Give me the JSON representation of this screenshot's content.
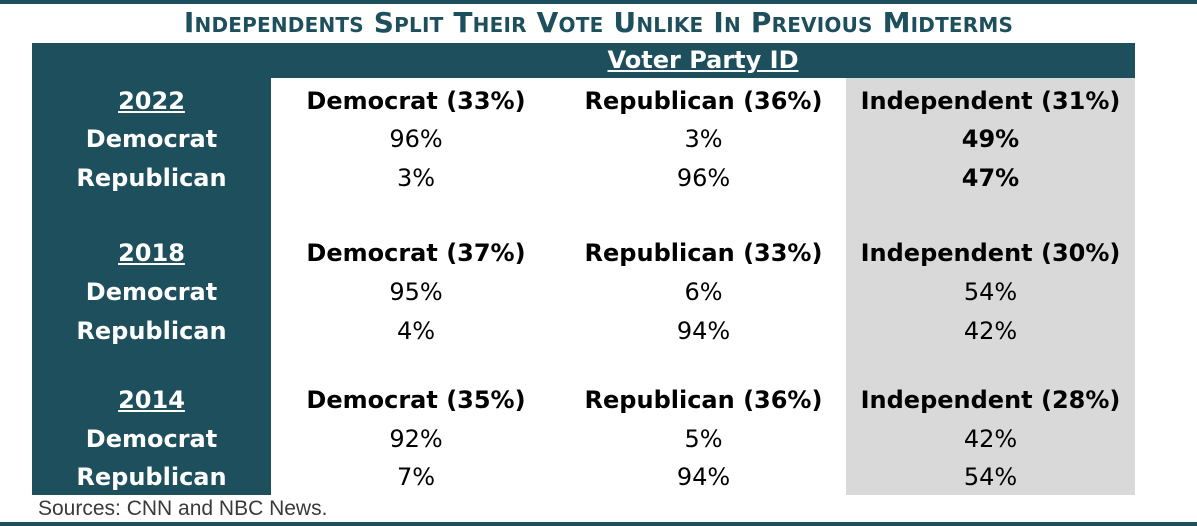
{
  "title": "Independents Split Their Vote Unlike In Previous Midterms",
  "header": "Voter Party ID",
  "source": "Sources: CNN and NBC News.",
  "colors": {
    "dark_teal": "#1e4f5d",
    "independent_bg": "#d9d9d9"
  },
  "chart_data": {
    "type": "table",
    "title": "Independents Split Their Vote Unlike In Previous Midterms",
    "column_group": "Voter Party ID",
    "blocks": [
      {
        "year": "2022",
        "columns": [
          "Democrat (33%)",
          "Republican (36%)",
          "Independent (31%)"
        ],
        "rows": [
          {
            "label": "Democrat",
            "values": [
              "96%",
              "3%",
              "49%"
            ]
          },
          {
            "label": "Republican",
            "values": [
              "3%",
              "96%",
              "47%"
            ]
          }
        ]
      },
      {
        "year": "2018",
        "columns": [
          "Democrat (37%)",
          "Republican (33%)",
          "Independent (30%)"
        ],
        "rows": [
          {
            "label": "Democrat",
            "values": [
              "95%",
              "6%",
              "54%"
            ]
          },
          {
            "label": "Republican",
            "values": [
              "4%",
              "94%",
              "42%"
            ]
          }
        ]
      },
      {
        "year": "2014",
        "columns": [
          "Democrat (35%)",
          "Republican (36%)",
          "Independent (28%)"
        ],
        "rows": [
          {
            "label": "Democrat",
            "values": [
              "92%",
              "5%",
              "42%"
            ]
          },
          {
            "label": "Republican",
            "values": [
              "7%",
              "94%",
              "54%"
            ]
          }
        ]
      }
    ]
  }
}
